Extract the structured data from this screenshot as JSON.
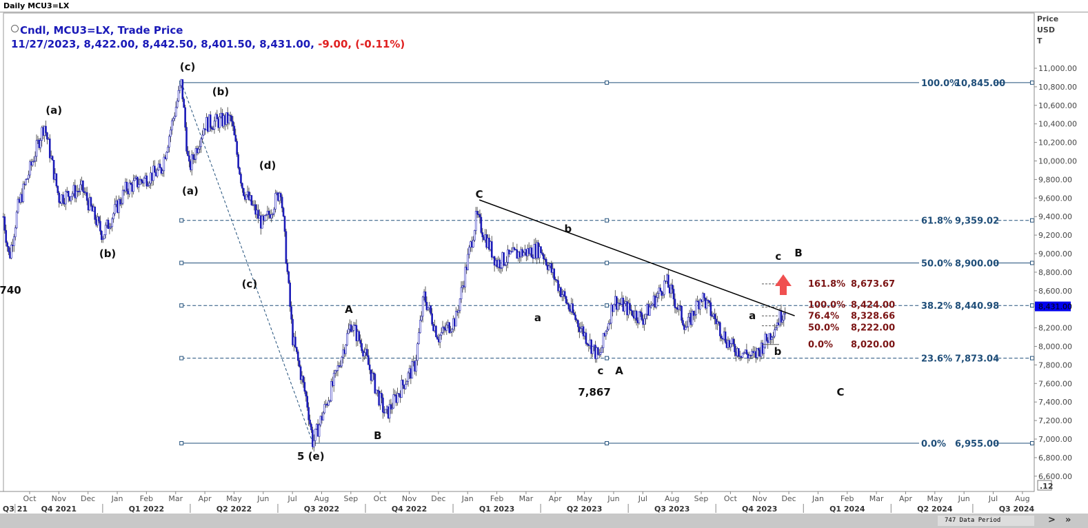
{
  "window_title": "Daily MCU3=LX",
  "legend": {
    "line1": "Cndl, MCU3=LX, Trade Price",
    "line2": "11/27/2023, 8,422.00, 8,442.50, 8,401.50, 8,431.00, ",
    "change": "-9.00, (-0.11%)"
  },
  "axis_title": {
    "l1": "Price",
    "l2": "USD",
    "l3": "T"
  },
  "price_badge": "8,431.00",
  "corner_label": ".12",
  "bottom": {
    "period": "747 Data Period",
    "next": ">",
    "last": "»"
  },
  "colors": {
    "candle": "#1a1ab8",
    "fib": "#1f4e79",
    "proj": "#7b1414",
    "arrow": "#f05050"
  },
  "chart_data": {
    "type": "candlestick",
    "title": "Daily MCU3=LX",
    "ylabel": "Price USD T",
    "ylim": [
      6600,
      11000
    ],
    "ystep": 200,
    "x_month_index_origin": "Oct 2021",
    "months": [
      "Oct",
      "Nov",
      "Dec",
      "Jan",
      "Feb",
      "Mar",
      "Apr",
      "May",
      "Jun",
      "Jul",
      "Aug",
      "Sep",
      "Oct",
      "Nov",
      "Dec",
      "Jan",
      "Feb",
      "Mar",
      "Apr",
      "May",
      "Jun",
      "Jul",
      "Aug",
      "Sep",
      "Oct",
      "Nov",
      "Dec",
      "Jan",
      "Feb",
      "Mar",
      "Apr",
      "May",
      "Jun",
      "Jul",
      "Aug"
    ],
    "quarters": [
      {
        "label": "Q3 21",
        "m": -1.5
      },
      {
        "label": "Q4 2021",
        "m": 1
      },
      {
        "label": "Q1 2022",
        "m": 4
      },
      {
        "label": "Q2 2022",
        "m": 7
      },
      {
        "label": "Q3 2022",
        "m": 10
      },
      {
        "label": "Q4 2022",
        "m": 13
      },
      {
        "label": "Q1 2023",
        "m": 16
      },
      {
        "label": "Q2 2023",
        "m": 19
      },
      {
        "label": "Q3 2023",
        "m": 22
      },
      {
        "label": "Q4 2023",
        "m": 25
      },
      {
        "label": "Q1 2024",
        "m": 28
      },
      {
        "label": "Q2 2024",
        "m": 31
      },
      {
        "label": "Q3 2024",
        "m": 33.8
      }
    ],
    "price_path": [
      [
        -0.9,
        9400
      ],
      [
        -0.7,
        8950
      ],
      [
        -0.4,
        9500
      ],
      [
        0.5,
        10400
      ],
      [
        1,
        9600
      ],
      [
        1.8,
        9700
      ],
      [
        2.5,
        9200
      ],
      [
        3.3,
        9700
      ],
      [
        4.5,
        9900
      ],
      [
        5.2,
        10845
      ],
      [
        5.45,
        9900
      ],
      [
        6,
        10400
      ],
      [
        6.9,
        10450
      ],
      [
        7.3,
        9700
      ],
      [
        8,
        9300
      ],
      [
        8.6,
        9700
      ],
      [
        9,
        8100
      ],
      [
        9.5,
        7400
      ],
      [
        9.7,
        6955
      ],
      [
        10.5,
        7700
      ],
      [
        11,
        8250
      ],
      [
        11.4,
        8000
      ],
      [
        11.9,
        7500
      ],
      [
        12.2,
        7250
      ],
      [
        12.8,
        7600
      ],
      [
        13.2,
        7800
      ],
      [
        13.5,
        8550
      ],
      [
        14,
        8100
      ],
      [
        14.6,
        8300
      ],
      [
        15.3,
        9400
      ],
      [
        16,
        8900
      ],
      [
        16.7,
        9000
      ],
      [
        17.5,
        9050
      ],
      [
        18.5,
        8400
      ],
      [
        19.5,
        7867
      ],
      [
        20,
        8500
      ],
      [
        21,
        8300
      ],
      [
        21.8,
        8700
      ],
      [
        22.5,
        8200
      ],
      [
        23,
        8550
      ],
      [
        24,
        8000
      ],
      [
        24.8,
        7880
      ],
      [
        25.3,
        8100
      ],
      [
        25.9,
        8431
      ]
    ],
    "fib_retracement": [
      {
        "label": "100.0%",
        "value": "10,845.00",
        "price": 10845,
        "style": "solid"
      },
      {
        "label": "61.8%",
        "value": "9,359.02",
        "price": 9359.02,
        "style": "dashed"
      },
      {
        "label": "50.0%",
        "value": "8,900.00",
        "price": 8900,
        "style": "solid"
      },
      {
        "label": "38.2%",
        "value": "8,440.98",
        "price": 8440.98,
        "style": "dashed"
      },
      {
        "label": "23.6%",
        "value": "7,873.04",
        "price": 7873.04,
        "style": "dashed"
      },
      {
        "label": "0.0%",
        "value": "6,955.00",
        "price": 6955,
        "style": "solid"
      }
    ],
    "fib_projection": [
      {
        "label": "161.8%",
        "value": "8,673.67",
        "price": 8673.67
      },
      {
        "label": "100.0%",
        "value": "8,424.00",
        "price": 8424
      },
      {
        "label": "76.4%",
        "value": "8,328.66",
        "price": 8328.66
      },
      {
        "label": "50.0%",
        "value": "8,222.00",
        "price": 8222
      },
      {
        "label": "0.0%",
        "value": "8,020.00",
        "price": 8020
      }
    ],
    "trendline": [
      [
        15.4,
        9580
      ],
      [
        26.2,
        8330
      ]
    ],
    "wave_labels": [
      {
        "t": "(a)",
        "m": 0.83,
        "p": 10546
      },
      {
        "t": "(b)",
        "m": 2.67,
        "p": 9000
      },
      {
        "t": "740",
        "m": -0.66,
        "p": 8606
      },
      {
        "t": "(c)",
        "m": 5.41,
        "p": 11015
      },
      {
        "t": "(b)",
        "m": 6.54,
        "p": 10747
      },
      {
        "t": "(a)",
        "m": 5.5,
        "p": 9677
      },
      {
        "t": "(d)",
        "m": 8.15,
        "p": 9952
      },
      {
        "t": "(c)",
        "m": 7.53,
        "p": 8673
      },
      {
        "t": "5 (e)",
        "m": 9.63,
        "p": 6814
      },
      {
        "t": "A",
        "m": 10.93,
        "p": 8398
      },
      {
        "t": "B",
        "m": 11.92,
        "p": 7037
      },
      {
        "t": "C",
        "m": 15.4,
        "p": 9639
      },
      {
        "t": "b",
        "m": 18.44,
        "p": 9268
      },
      {
        "t": "a",
        "m": 17.4,
        "p": 8309
      },
      {
        "t": "c",
        "m": 19.55,
        "p": 7736
      },
      {
        "t": "A",
        "m": 20.19,
        "p": 7736
      },
      {
        "t": "7,867",
        "m": 19.34,
        "p": 7505
      },
      {
        "t": "c",
        "m": 25.64,
        "p": 8970
      },
      {
        "t": "B",
        "m": 26.33,
        "p": 9007
      },
      {
        "t": "a",
        "m": 24.75,
        "p": 8331
      },
      {
        "t": "b",
        "m": 25.62,
        "p": 7944
      },
      {
        "t": "C",
        "m": 27.77,
        "p": 7505
      }
    ]
  }
}
